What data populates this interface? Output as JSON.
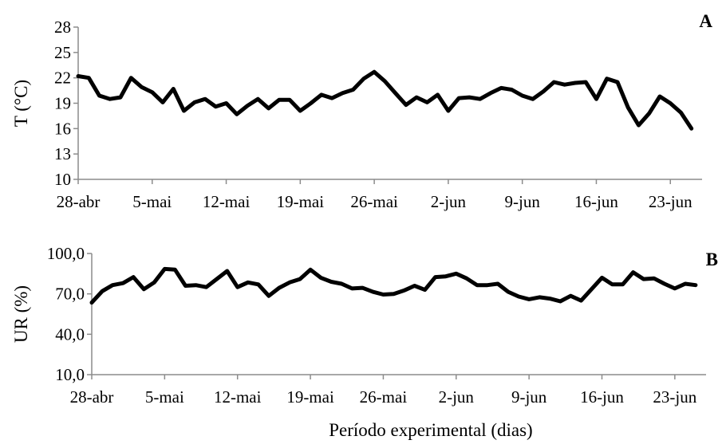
{
  "figure": {
    "shared_xlabel": "Período experimental (dias)"
  },
  "chart_data": [
    {
      "type": "line",
      "panel_label": "A",
      "ylabel": "T (°C)",
      "xlabel": "",
      "ylim": [
        10,
        28
      ],
      "yticks": [
        "10",
        "13",
        "16",
        "19",
        "22",
        "25",
        "28"
      ],
      "xlim": [
        0,
        59
      ],
      "x_tick_labels": [
        "28-abr",
        "5-mai",
        "12-mai",
        "19-mai",
        "26-mai",
        "2-jun",
        "9-jun",
        "16-jun",
        "23-jun"
      ],
      "x_tick_positions": [
        0,
        7,
        14,
        21,
        28,
        35,
        42,
        49,
        56
      ],
      "grid": false,
      "series": [
        {
          "color": "#000000",
          "values": [
            22.2,
            22.0,
            19.9,
            19.5,
            19.7,
            22.0,
            20.9,
            20.3,
            19.1,
            20.7,
            18.1,
            19.1,
            19.5,
            18.6,
            19.0,
            17.7,
            18.7,
            19.5,
            18.4,
            19.4,
            19.4,
            18.1,
            19.0,
            20.0,
            19.6,
            20.2,
            20.6,
            21.9,
            22.7,
            21.6,
            20.2,
            18.8,
            19.7,
            19.1,
            20.0,
            18.1,
            19.6,
            19.7,
            19.5,
            20.2,
            20.8,
            20.6,
            19.9,
            19.5,
            20.4,
            21.5,
            21.2,
            21.4,
            21.5,
            19.5,
            21.9,
            21.5,
            18.5,
            16.4,
            17.8,
            19.8,
            19.0,
            17.9,
            16.0
          ]
        }
      ]
    },
    {
      "type": "line",
      "panel_label": "B",
      "ylabel": "UR (%)",
      "xlabel": "Período experimental (dias)",
      "ylim": [
        10,
        100
      ],
      "yticks": [
        "10,0",
        "40,0",
        "70,0",
        "100,0"
      ],
      "xlim": [
        0,
        59
      ],
      "x_tick_labels": [
        "28-abr",
        "5-mai",
        "12-mai",
        "19-mai",
        "26-mai",
        "2-jun",
        "9-jun",
        "16-jun",
        "23-jun"
      ],
      "x_tick_positions": [
        0,
        7,
        14,
        21,
        28,
        35,
        42,
        49,
        56
      ],
      "grid": false,
      "series": [
        {
          "color": "#000000",
          "values": [
            63.5,
            72.0,
            76.5,
            78.0,
            82.5,
            73.5,
            78.5,
            88.5,
            88.0,
            76.0,
            76.5,
            75.0,
            81.0,
            87.0,
            75.0,
            78.5,
            77.0,
            68.5,
            74.5,
            78.5,
            81.0,
            88.0,
            82.0,
            79.0,
            77.5,
            74.0,
            74.5,
            71.5,
            69.5,
            70.0,
            72.5,
            76.0,
            73.0,
            82.5,
            83.0,
            85.0,
            81.5,
            76.5,
            76.5,
            77.5,
            71.5,
            68.0,
            66.0,
            67.5,
            66.5,
            64.5,
            68.5,
            65.0,
            73.5,
            82.0,
            77.0,
            77.0,
            86.0,
            81.0,
            81.5,
            77.5,
            74.0,
            77.5,
            76.5
          ]
        }
      ]
    }
  ]
}
